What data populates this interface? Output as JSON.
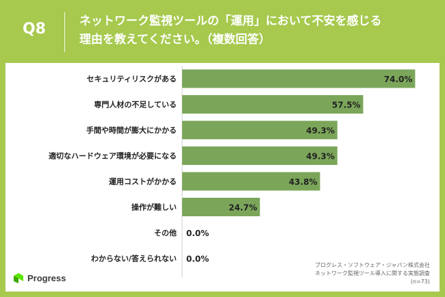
{
  "header": {
    "question_label": "Q8",
    "title_line1": "ネットワーク監視ツールの「運用」において不安を感じる",
    "title_line2": "理由を教えてください。（複数回答）"
  },
  "chart_data": {
    "type": "bar",
    "orientation": "horizontal",
    "categories": [
      "セキュリティリスクがある",
      "専門人材の不足している",
      "手間や時間が膨大にかかる",
      "適切なハードウェア環境が必要になる",
      "運用コストがかかる",
      "操作が難しい",
      "その他",
      "わからない/答えられない"
    ],
    "values": [
      74.0,
      57.5,
      49.3,
      49.3,
      43.8,
      24.7,
      0.0,
      0.0
    ],
    "value_labels": [
      "74.0%",
      "57.5%",
      "49.3%",
      "49.3%",
      "43.8%",
      "24.7%",
      "0.0%",
      "0.0%"
    ],
    "xlim": [
      0,
      100
    ],
    "bar_color": "#7ba65a",
    "grid": false
  },
  "source": {
    "line1": "プログレス・ソフトウェア・ジャパン株式会社",
    "line2": "ネットワーク監視ツール導入に関する実態調査",
    "line3": "(n=73)"
  },
  "logo": {
    "text": "Progress",
    "icon": "progress-logo-icon"
  },
  "colors": {
    "frame": "#a6c94e",
    "bar": "#7ba65a",
    "text": "#222222"
  }
}
